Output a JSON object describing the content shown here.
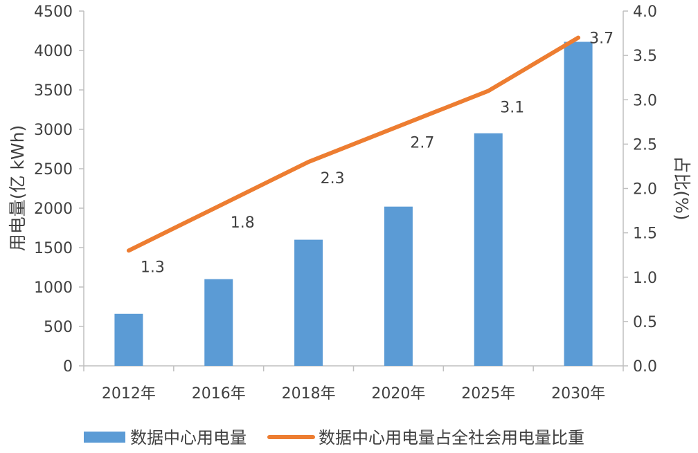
{
  "chart_data": {
    "type": "bar+line",
    "categories": [
      "2012年",
      "2016年",
      "2018年",
      "2020年",
      "2025年",
      "2030年"
    ],
    "series": [
      {
        "name": "数据中心用电量",
        "type": "bar",
        "axis": "left",
        "color": "#5b9bd5",
        "values": [
          660,
          1100,
          1600,
          2020,
          2950,
          4110
        ]
      },
      {
        "name": "数据中心用电量占全社会用电量比重",
        "type": "line",
        "axis": "right",
        "color": "#ed7d31",
        "values": [
          1.3,
          1.8,
          2.3,
          2.7,
          3.1,
          3.7
        ],
        "data_labels": [
          "1.3",
          "1.8",
          "2.3",
          "2.7",
          "3.1",
          "3.7"
        ]
      }
    ],
    "ylabel": "用电量(亿 kWh)",
    "y2label": "占比(%)",
    "ylim": [
      0,
      4500
    ],
    "y2lim": [
      0,
      4.0
    ],
    "yticks": [
      "0",
      "500",
      "1000",
      "1500",
      "2000",
      "2500",
      "3000",
      "3500",
      "4000",
      "4500"
    ],
    "y2ticks": [
      "0.0",
      "0.5",
      "1.0",
      "1.5",
      "2.0",
      "2.5",
      "3.0",
      "3.5",
      "4.0"
    ],
    "grid": false,
    "legend_position": "bottom"
  }
}
